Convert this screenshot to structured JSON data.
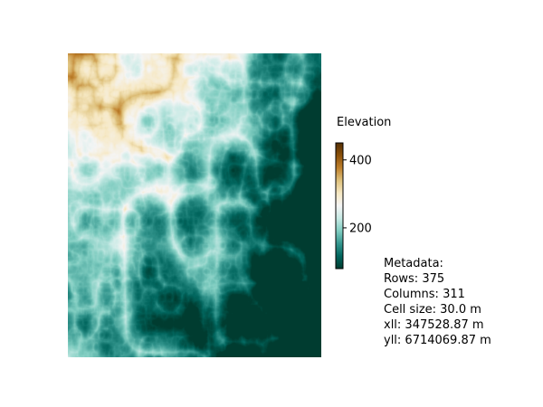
{
  "map": {
    "colorbar_title": "Elevation",
    "colormap": "BrBG_r",
    "colorbar_ticks": [
      {
        "label": "400",
        "value": 400
      },
      {
        "label": "200",
        "value": 200
      }
    ],
    "value_range": [
      80,
      450
    ],
    "colors": {
      "low": "#003c30",
      "mid": "#f5f5f5",
      "high": "#543005"
    }
  },
  "metadata": {
    "heading": "Metadata:",
    "rows": "Rows: 375",
    "columns": "Columns: 311",
    "cell_size": "Cell size: 30.0 m",
    "xll": "xll: 347528.87 m",
    "yll": "yll: 6714069.87 m"
  }
}
